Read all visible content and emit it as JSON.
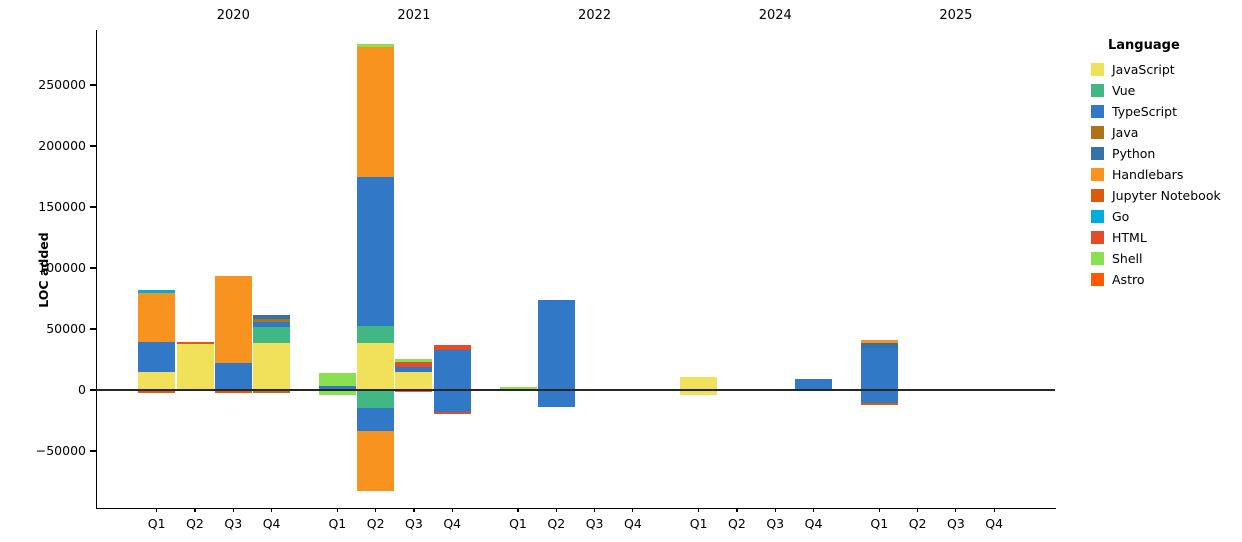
{
  "chart_data": {
    "type": "bar",
    "subtype": "diverging-stacked-bar",
    "title": "",
    "ylabel": "LOC added",
    "xlabel": "",
    "ylim": [
      -96000,
      295000
    ],
    "grid": false,
    "legend_position": "right",
    "yticks": [
      {
        "value": 250000,
        "label": "250000"
      },
      {
        "value": 200000,
        "label": "200000"
      },
      {
        "value": 150000,
        "label": "150000"
      },
      {
        "value": 100000,
        "label": "100000"
      },
      {
        "value": 50000,
        "label": "50000"
      },
      {
        "value": 0,
        "label": "0"
      },
      {
        "value": -50000,
        "label": "−50000"
      }
    ],
    "legend": {
      "title": "Language",
      "entries": [
        {
          "label": "JavaScript",
          "color": "#f1e05a"
        },
        {
          "label": "Vue",
          "color": "#41b883"
        },
        {
          "label": "TypeScript",
          "color": "#3178c6"
        },
        {
          "label": "Java",
          "color": "#b07219"
        },
        {
          "label": "Python",
          "color": "#3572a5"
        },
        {
          "label": "Handlebars",
          "color": "#f7931e"
        },
        {
          "label": "Jupyter Notebook",
          "color": "#da5b0b"
        },
        {
          "label": "Go",
          "color": "#00add8"
        },
        {
          "label": "HTML",
          "color": "#e34c26"
        },
        {
          "label": "Shell",
          "color": "#89e051"
        },
        {
          "label": "Astro",
          "color": "#ff5a03"
        }
      ]
    },
    "year_groups": [
      {
        "year": "2020",
        "quarters": [
          "Q1",
          "Q2",
          "Q3",
          "Q4"
        ]
      },
      {
        "year": "2021",
        "quarters": [
          "Q1",
          "Q2",
          "Q3",
          "Q4"
        ]
      },
      {
        "year": "2022",
        "quarters": [
          "Q1",
          "Q2",
          "Q3",
          "Q4"
        ]
      },
      {
        "year": "2024",
        "quarters": [
          "Q1",
          "Q2",
          "Q3",
          "Q4"
        ]
      },
      {
        "year": "2025",
        "quarters": [
          "Q1",
          "Q2",
          "Q3",
          "Q4"
        ]
      }
    ],
    "bars": [
      {
        "year": "2020",
        "quarter": "Q1",
        "segments": [
          {
            "language": "JavaScript",
            "from": 0,
            "to": 15000
          },
          {
            "language": "TypeScript",
            "from": 15000,
            "to": 39300
          },
          {
            "language": "Handlebars",
            "from": 39300,
            "to": 79800
          },
          {
            "language": "Go",
            "from": 79800,
            "to": 82000
          },
          {
            "language": "Jupyter Notebook",
            "from": 0,
            "to": -2500
          }
        ]
      },
      {
        "year": "2020",
        "quarter": "Q2",
        "segments": [
          {
            "language": "JavaScript",
            "from": 0,
            "to": 37700
          },
          {
            "language": "Jupyter Notebook",
            "from": 37700,
            "to": 39100
          }
        ]
      },
      {
        "year": "2020",
        "quarter": "Q3",
        "segments": [
          {
            "language": "TypeScript",
            "from": 0,
            "to": 22100
          },
          {
            "language": "Handlebars",
            "from": 22100,
            "to": 93400
          },
          {
            "language": "Jupyter Notebook",
            "from": 0,
            "to": -2500
          }
        ]
      },
      {
        "year": "2020",
        "quarter": "Q4",
        "segments": [
          {
            "language": "JavaScript",
            "from": 0,
            "to": 38500
          },
          {
            "language": "Vue",
            "from": 38500,
            "to": 51600
          },
          {
            "language": "TypeScript",
            "from": 51600,
            "to": 55700
          },
          {
            "language": "Java",
            "from": 55700,
            "to": 58200
          },
          {
            "language": "Python",
            "from": 58200,
            "to": 61100
          },
          {
            "language": "Java",
            "from": 0,
            "to": -2700
          }
        ]
      },
      {
        "year": "2021",
        "quarter": "Q1",
        "segments": [
          {
            "language": "TypeScript",
            "from": 0,
            "to": 3300
          },
          {
            "language": "Shell",
            "from": 3300,
            "to": 14200
          },
          {
            "language": "Shell",
            "from": 0,
            "to": -4100
          }
        ]
      },
      {
        "year": "2021",
        "quarter": "Q2",
        "segments": [
          {
            "language": "JavaScript",
            "from": 0,
            "to": 38300
          },
          {
            "language": "Vue",
            "from": 38300,
            "to": 52500
          },
          {
            "language": "TypeScript",
            "from": 52500,
            "to": 174900
          },
          {
            "language": "Handlebars",
            "from": 174900,
            "to": 281400
          },
          {
            "language": "Shell",
            "from": 281400,
            "to": 283600
          },
          {
            "language": "Vue",
            "from": 0,
            "to": -14500
          },
          {
            "language": "TypeScript",
            "from": -14500,
            "to": -33600
          },
          {
            "language": "Handlebars",
            "from": -33600,
            "to": -82500
          }
        ]
      },
      {
        "year": "2021",
        "quarter": "Q3",
        "segments": [
          {
            "language": "JavaScript",
            "from": 0,
            "to": 14800
          },
          {
            "language": "TypeScript",
            "from": 14800,
            "to": 18900
          },
          {
            "language": "HTML",
            "from": 18900,
            "to": 23000
          },
          {
            "language": "Shell",
            "from": 23000,
            "to": 25400
          },
          {
            "language": "Astro",
            "from": 0,
            "to": -1600
          }
        ]
      },
      {
        "year": "2021",
        "quarter": "Q4",
        "segments": [
          {
            "language": "TypeScript",
            "from": -17800,
            "to": 32800
          },
          {
            "language": "HTML",
            "from": 32800,
            "to": 36900
          },
          {
            "language": "HTML",
            "from": -17800,
            "to": -19600
          }
        ]
      },
      {
        "year": "2022",
        "quarter": "Q1",
        "segments": [
          {
            "language": "Shell",
            "from": 0,
            "to": 2200
          }
        ]
      },
      {
        "year": "2022",
        "quarter": "Q2",
        "segments": [
          {
            "language": "TypeScript",
            "from": -13700,
            "to": 73800
          }
        ]
      },
      {
        "year": "2022",
        "quarter": "Q3",
        "segments": []
      },
      {
        "year": "2022",
        "quarter": "Q4",
        "segments": []
      },
      {
        "year": "2024",
        "quarter": "Q1",
        "segments": [
          {
            "language": "JavaScript",
            "from": -4100,
            "to": 10900
          }
        ]
      },
      {
        "year": "2024",
        "quarter": "Q2",
        "segments": []
      },
      {
        "year": "2024",
        "quarter": "Q3",
        "segments": []
      },
      {
        "year": "2024",
        "quarter": "Q4",
        "segments": [
          {
            "language": "TypeScript",
            "from": 0,
            "to": 8800
          }
        ]
      },
      {
        "year": "2025",
        "quarter": "Q1",
        "segments": [
          {
            "language": "TypeScript",
            "from": -10400,
            "to": 34200
          },
          {
            "language": "Python",
            "from": 34200,
            "to": 38800
          },
          {
            "language": "Handlebars",
            "from": 38800,
            "to": 41000
          },
          {
            "language": "Jupyter Notebook",
            "from": -10400,
            "to": -12300
          }
        ]
      },
      {
        "year": "2025",
        "quarter": "Q2",
        "segments": []
      },
      {
        "year": "2025",
        "quarter": "Q3",
        "segments": []
      },
      {
        "year": "2025",
        "quarter": "Q4",
        "segments": []
      }
    ]
  }
}
